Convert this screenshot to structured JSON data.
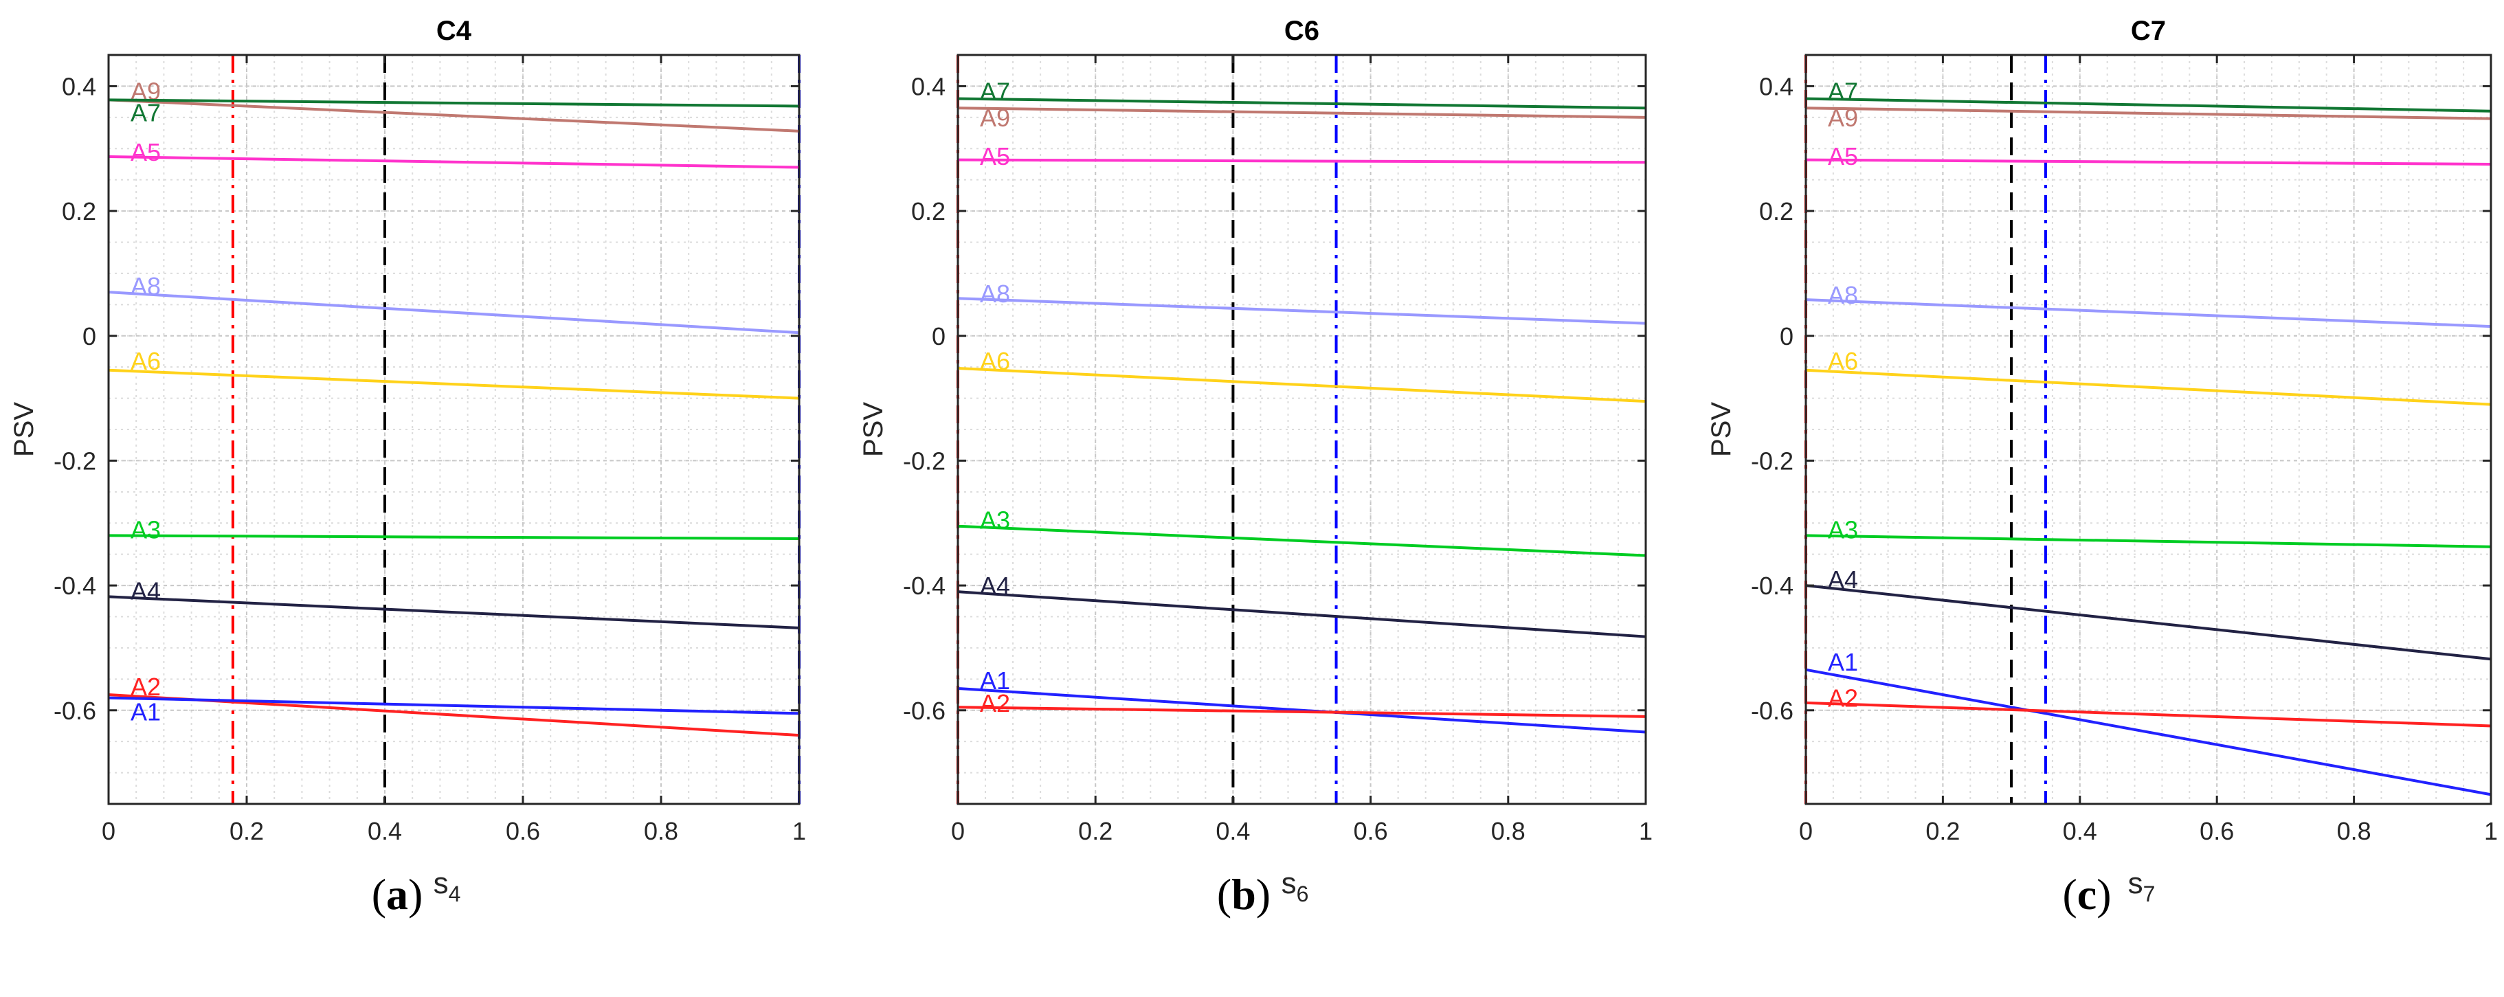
{
  "panels": [
    {
      "caption": "a",
      "chart_data": {
        "type": "line",
        "title": "C4",
        "xlabel_base": "s",
        "xlabel_sub": "4",
        "ylabel": "PSV",
        "xlim": [
          0,
          1
        ],
        "ylim": [
          -0.75,
          0.45
        ],
        "xticks": [
          0,
          0.2,
          0.4,
          0.6,
          0.8,
          1
        ],
        "xtick_labels": [
          "0",
          "0.2",
          "0.4",
          "0.6",
          "0.8",
          "1"
        ],
        "yticks": [
          -0.6,
          -0.4,
          -0.2,
          0,
          0.2,
          0.4
        ],
        "ytick_labels": [
          "-0.6",
          "-0.4",
          "-0.2",
          "0",
          "0.2",
          "0.4"
        ],
        "vlines": [
          {
            "x": 0.18,
            "color": "#ff0000",
            "style": "dashdot"
          },
          {
            "x": 0.4,
            "color": "#000000",
            "style": "dash"
          },
          {
            "x": 1.0,
            "color": "#0000ff",
            "style": "dashdot"
          }
        ],
        "series": [
          {
            "name": "A9",
            "color": "#c07870",
            "values": [
              0.378,
              0.328
            ],
            "label_y": 0.392
          },
          {
            "name": "A7",
            "color": "#117733",
            "values": [
              0.378,
              0.368
            ],
            "label_y": 0.358
          },
          {
            "name": "A5",
            "color": "#ff33cc",
            "values": [
              0.287,
              0.27
            ],
            "label_y": 0.295
          },
          {
            "name": "A8",
            "color": "#9999ff",
            "values": [
              0.07,
              0.005
            ],
            "label_y": 0.08
          },
          {
            "name": "A6",
            "color": "#ffd21a",
            "values": [
              -0.055,
              -0.1
            ],
            "label_y": -0.04
          },
          {
            "name": "A3",
            "color": "#00cc22",
            "values": [
              -0.32,
              -0.325
            ],
            "label_y": -0.31
          },
          {
            "name": "A4",
            "color": "#222244",
            "values": [
              -0.418,
              -0.468
            ],
            "label_y": -0.408
          },
          {
            "name": "A2",
            "color": "#ff2222",
            "values": [
              -0.575,
              -0.64
            ],
            "label_y": -0.562
          },
          {
            "name": "A1",
            "color": "#2222ff",
            "values": [
              -0.58,
              -0.605
            ],
            "label_y": -0.602
          }
        ]
      }
    },
    {
      "caption": "b",
      "chart_data": {
        "type": "line",
        "title": "C6",
        "xlabel_base": "s",
        "xlabel_sub": "6",
        "ylabel": "PSV",
        "xlim": [
          0,
          1
        ],
        "ylim": [
          -0.75,
          0.45
        ],
        "xticks": [
          0,
          0.2,
          0.4,
          0.6,
          0.8,
          1
        ],
        "xtick_labels": [
          "0",
          "0.2",
          "0.4",
          "0.6",
          "0.8",
          "1"
        ],
        "yticks": [
          -0.6,
          -0.4,
          -0.2,
          0,
          0.2,
          0.4
        ],
        "ytick_labels": [
          "-0.6",
          "-0.4",
          "-0.2",
          "0",
          "0.2",
          "0.4"
        ],
        "vlines": [
          {
            "x": 0.0,
            "color": "#ff0000",
            "style": "dashdot"
          },
          {
            "x": 0.4,
            "color": "#000000",
            "style": "dash"
          },
          {
            "x": 0.55,
            "color": "#0000ff",
            "style": "dashdot"
          }
        ],
        "series": [
          {
            "name": "A7",
            "color": "#117733",
            "values": [
              0.38,
              0.365
            ],
            "label_y": 0.392
          },
          {
            "name": "A9",
            "color": "#c07870",
            "values": [
              0.365,
              0.35
            ],
            "label_y": 0.35
          },
          {
            "name": "A5",
            "color": "#ff33cc",
            "values": [
              0.282,
              0.278
            ],
            "label_y": 0.288
          },
          {
            "name": "A8",
            "color": "#9999ff",
            "values": [
              0.06,
              0.02
            ],
            "label_y": 0.068
          },
          {
            "name": "A6",
            "color": "#ffd21a",
            "values": [
              -0.052,
              -0.105
            ],
            "label_y": -0.04
          },
          {
            "name": "A3",
            "color": "#00cc22",
            "values": [
              -0.305,
              -0.352
            ],
            "label_y": -0.295
          },
          {
            "name": "A4",
            "color": "#222244",
            "values": [
              -0.41,
              -0.482
            ],
            "label_y": -0.4
          },
          {
            "name": "A1",
            "color": "#2222ff",
            "values": [
              -0.565,
              -0.635
            ],
            "label_y": -0.552
          },
          {
            "name": "A2",
            "color": "#ff2222",
            "values": [
              -0.595,
              -0.61
            ],
            "label_y": -0.588
          }
        ]
      }
    },
    {
      "caption": "c",
      "chart_data": {
        "type": "line",
        "title": "C7",
        "xlabel_base": "s",
        "xlabel_sub": "7",
        "ylabel": "PSV",
        "xlim": [
          0,
          1
        ],
        "ylim": [
          -0.75,
          0.45
        ],
        "xticks": [
          0,
          0.2,
          0.4,
          0.6,
          0.8,
          1
        ],
        "xtick_labels": [
          "0",
          "0.2",
          "0.4",
          "0.6",
          "0.8",
          "1"
        ],
        "yticks": [
          -0.6,
          -0.4,
          -0.2,
          0,
          0.2,
          0.4
        ],
        "ytick_labels": [
          "-0.6",
          "-0.4",
          "-0.2",
          "0",
          "0.2",
          "0.4"
        ],
        "vlines": [
          {
            "x": 0.0,
            "color": "#ff0000",
            "style": "dashdot"
          },
          {
            "x": 0.3,
            "color": "#000000",
            "style": "dash"
          },
          {
            "x": 0.35,
            "color": "#0000ff",
            "style": "dashdot"
          }
        ],
        "series": [
          {
            "name": "A7",
            "color": "#117733",
            "values": [
              0.38,
              0.36
            ],
            "label_y": 0.392
          },
          {
            "name": "A9",
            "color": "#c07870",
            "values": [
              0.365,
              0.348
            ],
            "label_y": 0.35
          },
          {
            "name": "A5",
            "color": "#ff33cc",
            "values": [
              0.282,
              0.275
            ],
            "label_y": 0.288
          },
          {
            "name": "A8",
            "color": "#9999ff",
            "values": [
              0.058,
              0.015
            ],
            "label_y": 0.066
          },
          {
            "name": "A6",
            "color": "#ffd21a",
            "values": [
              -0.055,
              -0.11
            ],
            "label_y": -0.04
          },
          {
            "name": "A3",
            "color": "#00cc22",
            "values": [
              -0.32,
              -0.338
            ],
            "label_y": -0.31
          },
          {
            "name": "A4",
            "color": "#222244",
            "values": [
              -0.4,
              -0.518
            ],
            "label_y": -0.39
          },
          {
            "name": "A1",
            "color": "#2222ff",
            "values": [
              -0.535,
              -0.735
            ],
            "label_y": -0.522
          },
          {
            "name": "A2",
            "color": "#ff2222",
            "values": [
              -0.588,
              -0.625
            ],
            "label_y": -0.58
          }
        ]
      }
    }
  ]
}
